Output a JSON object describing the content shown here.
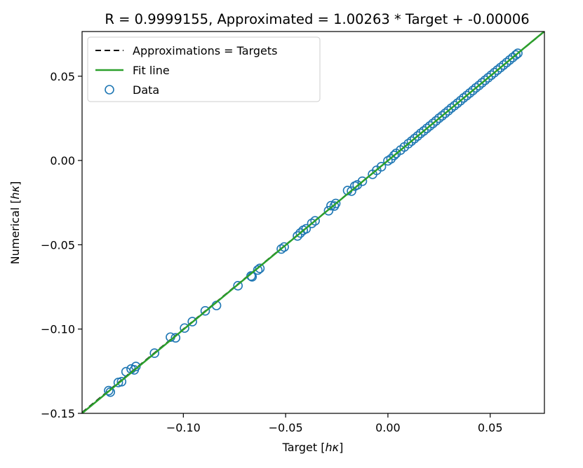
{
  "chart_data": {
    "type": "scatter",
    "title": "R = 0.9999155, Approximated = 1.00263 * Target + -0.00006",
    "xlabel": "Target [hκ]",
    "ylabel": "Numerical [hκ]",
    "xlim": [
      -0.1495,
      0.0765
    ],
    "ylim": [
      -0.15,
      0.0765
    ],
    "xticks": [
      -0.1,
      -0.05,
      0.0,
      0.05
    ],
    "xtick_labels": [
      "−0.10",
      "−0.05",
      "0.00",
      "0.05"
    ],
    "yticks": [
      -0.15,
      -0.1,
      -0.05,
      0.0,
      0.05
    ],
    "ytick_labels": [
      "−0.15",
      "−0.10",
      "−0.05",
      "0.00",
      "0.05"
    ],
    "grid": false,
    "legend_position": "top-left",
    "legend": [
      "Approximations = Targets",
      "Fit line",
      "Data"
    ],
    "colors": {
      "identity": "#000000",
      "fit": "#2ca02c",
      "data": "#1f77b4"
    },
    "series": [
      {
        "name": "Approximations = Targets",
        "kind": "line",
        "style": "dashed",
        "slope": 1.0,
        "intercept": 0.0
      },
      {
        "name": "Fit line",
        "kind": "line",
        "style": "solid",
        "slope": 1.00263,
        "intercept": -6e-05
      },
      {
        "name": "Data",
        "kind": "scatter",
        "marker": "open-circle",
        "x": [
          -0.1365,
          -0.1357,
          -0.1318,
          -0.1302,
          -0.128,
          -0.1255,
          -0.124,
          -0.1232,
          -0.1141,
          -0.1063,
          -0.1038,
          -0.0994,
          -0.0956,
          -0.0893,
          -0.0838,
          -0.0733,
          -0.0669,
          -0.0664,
          -0.0636,
          -0.0626,
          -0.0521,
          -0.0507,
          -0.0442,
          -0.0428,
          -0.0414,
          -0.04,
          -0.0372,
          -0.0356,
          -0.029,
          -0.0278,
          -0.0262,
          -0.0255,
          -0.0197,
          -0.0178,
          -0.0162,
          -0.015,
          -0.0125,
          -0.0075,
          -0.0055,
          -0.0032,
          0.0,
          0.0015,
          0.003,
          0.004,
          0.0062,
          0.008,
          0.01,
          0.0115,
          0.013,
          0.0145,
          0.016,
          0.0175,
          0.019,
          0.0205,
          0.022,
          0.0235,
          0.025,
          0.0265,
          0.028,
          0.0295,
          0.031,
          0.0325,
          0.034,
          0.0355,
          0.037,
          0.0385,
          0.04,
          0.0415,
          0.043,
          0.0445,
          0.046,
          0.0475,
          0.049,
          0.0505,
          0.052,
          0.0535,
          0.055,
          0.0565,
          0.058,
          0.0595,
          0.061,
          0.0625,
          0.0635
        ],
        "y": [
          -0.1365,
          -0.1374,
          -0.1317,
          -0.1312,
          -0.1253,
          -0.1237,
          -0.1242,
          -0.1222,
          -0.1143,
          -0.1048,
          -0.1052,
          -0.0994,
          -0.0956,
          -0.0892,
          -0.086,
          -0.0743,
          -0.0685,
          -0.069,
          -0.065,
          -0.064,
          -0.0525,
          -0.0513,
          -0.0448,
          -0.043,
          -0.0414,
          -0.0405,
          -0.0373,
          -0.0358,
          -0.0298,
          -0.0268,
          -0.027,
          -0.0255,
          -0.0178,
          -0.0182,
          -0.0152,
          -0.0145,
          -0.0123,
          -0.0082,
          -0.0058,
          -0.0037,
          -0.0002,
          0.001,
          0.003,
          0.0042,
          0.0062,
          0.008,
          0.01,
          0.0115,
          0.013,
          0.0145,
          0.0161,
          0.0175,
          0.019,
          0.0205,
          0.022,
          0.0235,
          0.0251,
          0.0265,
          0.028,
          0.0295,
          0.0311,
          0.0325,
          0.034,
          0.0355,
          0.0371,
          0.0385,
          0.04,
          0.0415,
          0.0431,
          0.0445,
          0.0461,
          0.0476,
          0.0491,
          0.0506,
          0.0521,
          0.0536,
          0.0551,
          0.0566,
          0.0581,
          0.0596,
          0.0611,
          0.0626,
          0.0636
        ]
      }
    ]
  }
}
